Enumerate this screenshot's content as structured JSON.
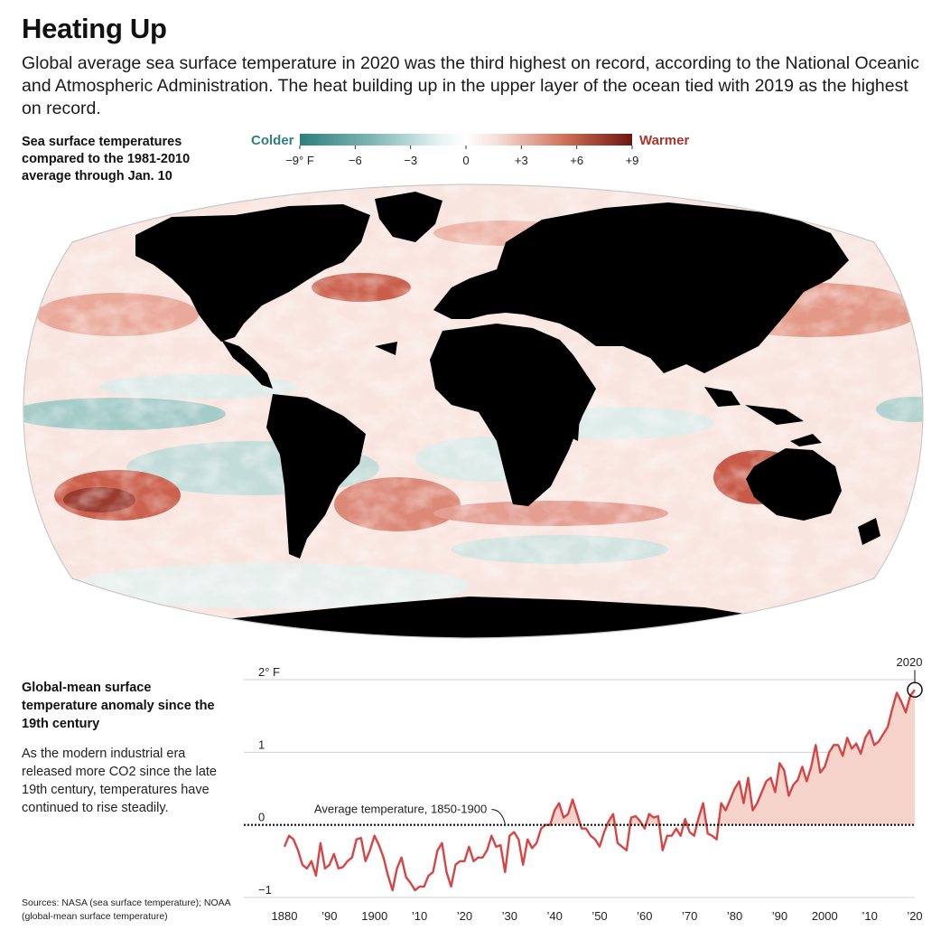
{
  "title": "Heating Up",
  "dek": "Global average sea surface temperature in 2020 was the third highest on record, according to the National Oceanic and Atmospheric Administration. The heat building up in the upper layer of the ocean tied with 2019 as the highest on record.",
  "map": {
    "caption": "Sea surface temperatures compared to the 1981-2010 average through Jan. 10",
    "legend": {
      "cold_label": "Colder",
      "warm_label": "Warmer",
      "ticks": [
        "−9° F",
        "−6",
        "−3",
        "0",
        "+3",
        "+6",
        "+9"
      ],
      "colors": {
        "cold": "#2f7f7e",
        "neutral": "#ffffff",
        "warm": "#7d1a12"
      }
    }
  },
  "chart_caption": "Global-mean surface temperature anomaly since the 19th century",
  "chart_body": "As the modern industrial era released more CO2 since the late 19th century, temperatures have continued to rise steadily.",
  "sources": "Sources: NASA (sea surface temperature); NOAA (global-mean surface temperature)",
  "chart_data": {
    "type": "area",
    "unit": "° F",
    "ylim": [
      -1,
      2
    ],
    "xlim": [
      1880,
      2020
    ],
    "y_ticks": [
      {
        "value": 2,
        "label": "2° F"
      },
      {
        "value": 1,
        "label": "1"
      },
      {
        "value": 0,
        "label": "0"
      },
      {
        "value": -1,
        "label": "−1"
      }
    ],
    "x_ticks": [
      {
        "value": 1880,
        "label": "1880"
      },
      {
        "value": 1890,
        "label": "’90"
      },
      {
        "value": 1900,
        "label": "1900"
      },
      {
        "value": 1910,
        "label": "’10"
      },
      {
        "value": 1920,
        "label": "’20"
      },
      {
        "value": 1930,
        "label": "’30"
      },
      {
        "value": 1940,
        "label": "’40"
      },
      {
        "value": 1950,
        "label": "’50"
      },
      {
        "value": 1960,
        "label": "’60"
      },
      {
        "value": 1970,
        "label": "’70"
      },
      {
        "value": 1980,
        "label": "’80"
      },
      {
        "value": 1990,
        "label": "’90"
      },
      {
        "value": 2000,
        "label": "2000"
      },
      {
        "value": 2010,
        "label": "’10"
      },
      {
        "value": 2020,
        "label": "’20"
      }
    ],
    "reference_line": {
      "value": 0,
      "label": "Average temperature, 1850-1900"
    },
    "highlight": {
      "x": 2020,
      "label": "2020"
    },
    "line_color": "#d64545",
    "fill_color": "#f6d3cb",
    "series": [
      {
        "x": [
          1880,
          1881,
          1882,
          1883,
          1884,
          1885,
          1886,
          1887,
          1888,
          1889,
          1890,
          1891,
          1892,
          1893,
          1894,
          1895,
          1896,
          1897,
          1898,
          1899,
          1900,
          1901,
          1902,
          1903,
          1904,
          1905,
          1906,
          1907,
          1908,
          1909,
          1910,
          1911,
          1912,
          1913,
          1914,
          1915,
          1916,
          1917,
          1918,
          1919,
          1920,
          1921,
          1922,
          1923,
          1924,
          1925,
          1926,
          1927,
          1928,
          1929,
          1930,
          1931,
          1932,
          1933,
          1934,
          1935,
          1936,
          1937,
          1938,
          1939,
          1940,
          1941,
          1942,
          1943,
          1944,
          1945,
          1946,
          1947,
          1948,
          1949,
          1950,
          1951,
          1952,
          1953,
          1954,
          1955,
          1956,
          1957,
          1958,
          1959,
          1960,
          1961,
          1962,
          1963,
          1964,
          1965,
          1966,
          1967,
          1968,
          1969,
          1970,
          1971,
          1972,
          1973,
          1974,
          1975,
          1976,
          1977,
          1978,
          1979,
          1980,
          1981,
          1982,
          1983,
          1984,
          1985,
          1986,
          1987,
          1988,
          1989,
          1990,
          1991,
          1992,
          1993,
          1994,
          1995,
          1996,
          1997,
          1998,
          1999,
          2000,
          2001,
          2002,
          2003,
          2004,
          2005,
          2006,
          2007,
          2008,
          2009,
          2010,
          2011,
          2012,
          2013,
          2014,
          2015,
          2016,
          2017,
          2018,
          2019,
          2020
        ],
        "values": [
          -0.3,
          -0.15,
          -0.2,
          -0.35,
          -0.55,
          -0.6,
          -0.5,
          -0.7,
          -0.25,
          -0.6,
          -0.55,
          -0.4,
          -0.6,
          -0.58,
          -0.5,
          -0.45,
          -0.2,
          -0.18,
          -0.5,
          -0.35,
          -0.15,
          -0.28,
          -0.45,
          -0.7,
          -0.9,
          -0.6,
          -0.45,
          -0.72,
          -0.8,
          -0.9,
          -0.85,
          -0.85,
          -0.7,
          -0.65,
          -0.35,
          -0.25,
          -0.65,
          -0.85,
          -0.55,
          -0.5,
          -0.5,
          -0.3,
          -0.5,
          -0.45,
          -0.45,
          -0.35,
          -0.15,
          -0.3,
          -0.28,
          -0.65,
          -0.15,
          -0.1,
          -0.2,
          -0.55,
          -0.2,
          -0.32,
          -0.25,
          -0.05,
          0.0,
          0.0,
          0.2,
          0.3,
          0.1,
          0.15,
          0.35,
          0.15,
          -0.05,
          -0.05,
          -0.15,
          -0.2,
          -0.3,
          -0.1,
          0.05,
          0.15,
          -0.25,
          -0.3,
          -0.35,
          0.1,
          0.12,
          0.05,
          -0.05,
          0.15,
          0.1,
          0.12,
          -0.35,
          -0.15,
          -0.15,
          -0.05,
          -0.15,
          0.08,
          -0.1,
          -0.15,
          0.1,
          0.3,
          -0.12,
          -0.15,
          -0.2,
          0.3,
          0.2,
          0.35,
          0.5,
          0.6,
          0.3,
          0.65,
          0.2,
          0.3,
          0.45,
          0.6,
          0.65,
          0.45,
          0.85,
          0.75,
          0.4,
          0.55,
          0.62,
          0.8,
          0.6,
          0.8,
          1.1,
          0.72,
          0.8,
          1.0,
          1.1,
          1.1,
          0.95,
          1.2,
          1.05,
          1.12,
          0.98,
          1.2,
          1.3,
          1.1,
          1.15,
          1.25,
          1.35,
          1.6,
          1.82,
          1.7,
          1.55,
          1.78,
          1.86
        ]
      }
    ]
  }
}
